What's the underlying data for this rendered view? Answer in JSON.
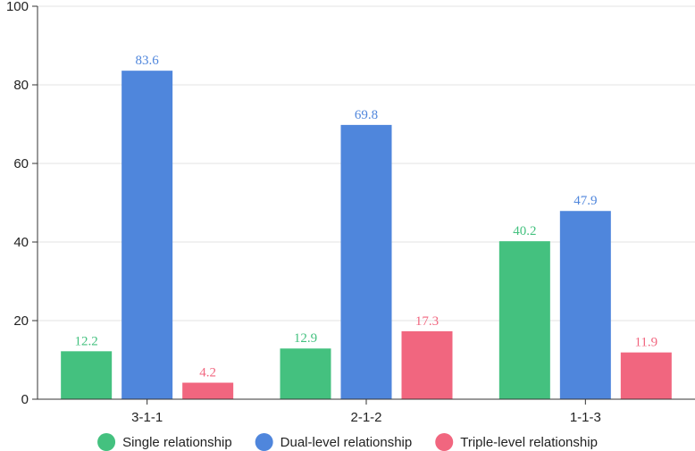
{
  "chart_data": {
    "type": "bar",
    "categories": [
      "3-1-1",
      "2-1-2",
      "1-1-3"
    ],
    "series": [
      {
        "name": "Single relationship",
        "color": "#44c17f",
        "values": [
          12.2,
          12.9,
          40.2
        ]
      },
      {
        "name": "Dual-level relationship",
        "color": "#4f86dc",
        "values": [
          83.6,
          69.8,
          47.9
        ]
      },
      {
        "name": "Triple-level relationship",
        "color": "#f1667f",
        "values": [
          4.2,
          17.3,
          11.9
        ]
      }
    ],
    "yticks": [
      "0",
      "20",
      "40",
      "60",
      "80",
      "100"
    ],
    "ylim": [
      0,
      100
    ],
    "title": "",
    "xlabel": "",
    "ylabel": "",
    "grid": true,
    "legend_position": "bottom"
  }
}
